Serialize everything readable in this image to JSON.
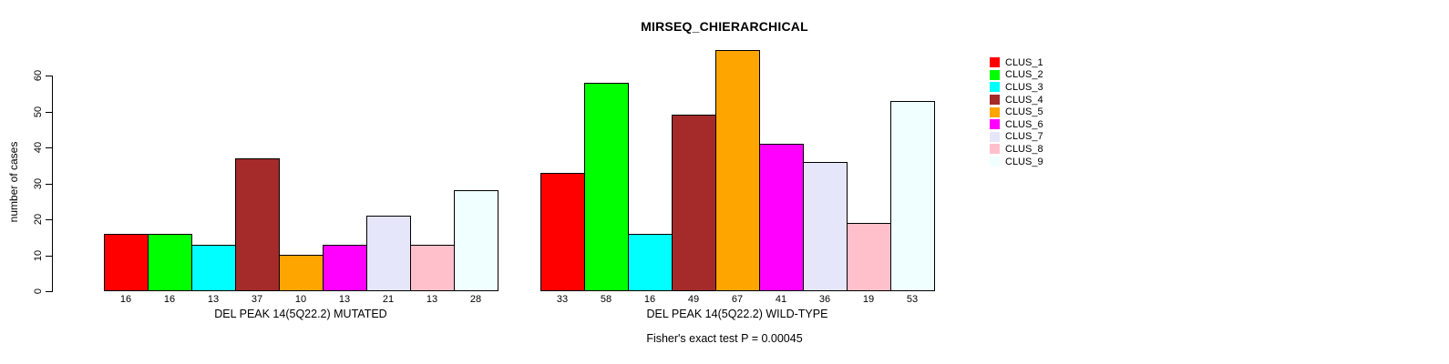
{
  "title": "MIRSEQ_CHIERARCHICAL",
  "chart_data": {
    "type": "bar",
    "title": "MIRSEQ_CHIERARCHICAL",
    "ylabel": "number of cases",
    "xlabel": "",
    "ylim": [
      0,
      60
    ],
    "yticks": [
      0,
      10,
      20,
      30,
      40,
      50,
      60
    ],
    "grid": false,
    "bar_border_color": "#000000",
    "categories": [
      "CLUS_1",
      "CLUS_2",
      "CLUS_3",
      "CLUS_4",
      "CLUS_5",
      "CLUS_6",
      "CLUS_7",
      "CLUS_8",
      "CLUS_9"
    ],
    "colors": [
      "#FF0000",
      "#00FF00",
      "#00FFFF",
      "#A52A2A",
      "#FFA500",
      "#FF00FF",
      "#E6E6FA",
      "#FFC0CB",
      "#F0FFFF"
    ],
    "groups": [
      {
        "label": "DEL PEAK 14(5Q22.2) MUTATED",
        "values": [
          16,
          16,
          13,
          37,
          10,
          13,
          21,
          13,
          28
        ]
      },
      {
        "label": "DEL PEAK 14(5Q22.2) WILD-TYPE",
        "values": [
          33,
          58,
          16,
          49,
          67,
          41,
          36,
          19,
          53
        ]
      }
    ],
    "legend": {
      "position": "right",
      "entries": [
        "CLUS_1",
        "CLUS_2",
        "CLUS_3",
        "CLUS_4",
        "CLUS_5",
        "CLUS_6",
        "CLUS_7",
        "CLUS_8",
        "CLUS_9"
      ]
    },
    "annotation": "Fisher's exact test P = 0.00045"
  }
}
